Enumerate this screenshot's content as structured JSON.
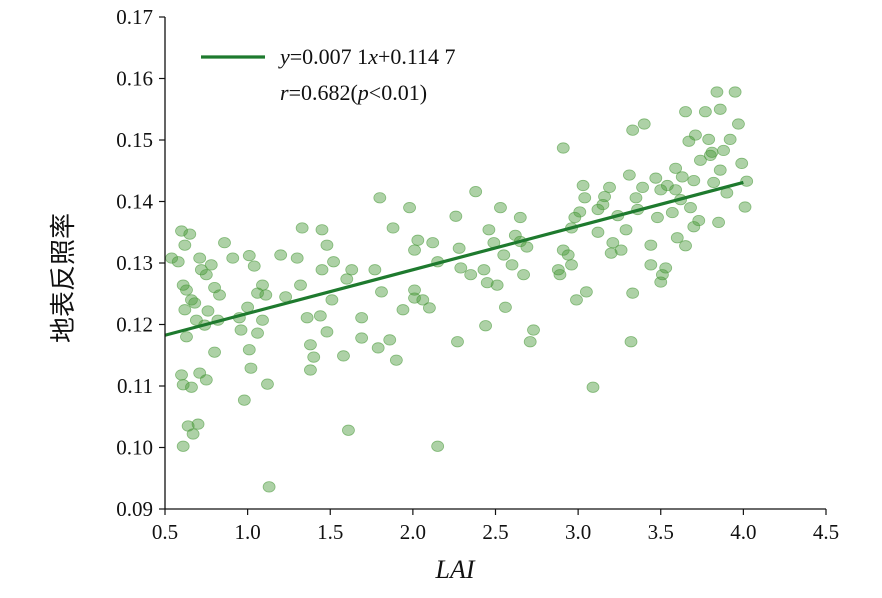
{
  "chart_data": {
    "type": "scatter",
    "xlabel": "LAI",
    "ylabel": "地表反照率",
    "xlim": [
      0.5,
      4.5
    ],
    "ylim": [
      0.09,
      0.17
    ],
    "xticks": [
      "0.5",
      "1.0",
      "1.5",
      "2.0",
      "2.5",
      "3.0",
      "3.5",
      "4.0",
      "4.5"
    ],
    "yticks": [
      "0.09",
      "0.10",
      "0.11",
      "0.12",
      "0.13",
      "0.14",
      "0.15",
      "0.16",
      "0.17"
    ],
    "grid": false,
    "point_color": "#4a9a3a",
    "line_color": "#1e7a2e",
    "regression": {
      "slope": 0.0071,
      "intercept": 0.1147,
      "x_range": [
        0.5,
        4.0
      ]
    },
    "legend": {
      "placement": "top-left",
      "equation_parts": [
        "y",
        "=0.007 1",
        "x",
        "+0.114 7"
      ],
      "stats_parts": [
        "r",
        "=0.682(",
        "p",
        "<0.01)"
      ]
    },
    "points": [
      [
        0.54,
        0.1308
      ],
      [
        0.58,
        0.1302
      ],
      [
        0.6,
        0.1352
      ],
      [
        0.65,
        0.1347
      ],
      [
        0.62,
        0.1329
      ],
      [
        0.61,
        0.1264
      ],
      [
        0.63,
        0.1256
      ],
      [
        0.66,
        0.124
      ],
      [
        0.62,
        0.1224
      ],
      [
        0.68,
        0.1235
      ],
      [
        0.71,
        0.1308
      ],
      [
        0.72,
        0.1289
      ],
      [
        0.75,
        0.1281
      ],
      [
        0.78,
        0.1297
      ],
      [
        0.8,
        0.126
      ],
      [
        0.83,
        0.1248
      ],
      [
        0.86,
        0.1333
      ],
      [
        0.63,
        0.118
      ],
      [
        0.69,
        0.1207
      ],
      [
        0.74,
        0.1199
      ],
      [
        0.76,
        0.1222
      ],
      [
        0.8,
        0.1155
      ],
      [
        0.6,
        0.1118
      ],
      [
        0.61,
        0.1102
      ],
      [
        0.66,
        0.1098
      ],
      [
        0.71,
        0.1121
      ],
      [
        0.75,
        0.111
      ],
      [
        0.64,
        0.1035
      ],
      [
        0.67,
        0.1022
      ],
      [
        0.7,
        0.1038
      ],
      [
        0.61,
        0.1002
      ],
      [
        0.82,
        0.1207
      ],
      [
        0.91,
        0.1308
      ],
      [
        0.98,
        0.1077
      ],
      [
        0.95,
        0.1211
      ],
      [
        0.96,
        0.1191
      ],
      [
        1.0,
        0.1228
      ],
      [
        1.01,
        0.1312
      ],
      [
        1.04,
        0.1295
      ],
      [
        1.06,
        0.1251
      ],
      [
        1.09,
        0.1264
      ],
      [
        1.11,
        0.1248
      ],
      [
        1.09,
        0.1207
      ],
      [
        1.06,
        0.1186
      ],
      [
        1.01,
        0.1159
      ],
      [
        1.02,
        0.1129
      ],
      [
        1.12,
        0.1103
      ],
      [
        1.13,
        0.0936
      ],
      [
        1.2,
        0.1313
      ],
      [
        1.23,
        0.1245
      ],
      [
        1.33,
        0.1357
      ],
      [
        1.3,
        0.1308
      ],
      [
        1.32,
        0.1264
      ],
      [
        1.36,
        0.1211
      ],
      [
        1.38,
        0.1167
      ],
      [
        1.4,
        0.1147
      ],
      [
        1.38,
        0.1126
      ],
      [
        1.45,
        0.1354
      ],
      [
        1.48,
        0.1329
      ],
      [
        1.45,
        0.1289
      ],
      [
        1.44,
        0.1214
      ],
      [
        1.48,
        0.1188
      ],
      [
        1.51,
        0.124
      ],
      [
        1.52,
        0.1302
      ],
      [
        1.58,
        0.1149
      ],
      [
        1.6,
        0.1274
      ],
      [
        1.63,
        0.1289
      ],
      [
        1.61,
        0.1028
      ],
      [
        1.69,
        0.1211
      ],
      [
        1.69,
        0.1178
      ],
      [
        1.77,
        0.1289
      ],
      [
        1.8,
        0.1406
      ],
      [
        1.81,
        0.1253
      ],
      [
        1.79,
        0.1162
      ],
      [
        1.86,
        0.1175
      ],
      [
        1.88,
        0.1357
      ],
      [
        1.9,
        0.1142
      ],
      [
        1.94,
        0.1224
      ],
      [
        1.98,
        0.139
      ],
      [
        2.01,
        0.1321
      ],
      [
        2.03,
        0.1337
      ],
      [
        2.01,
        0.1256
      ],
      [
        2.01,
        0.1243
      ],
      [
        2.06,
        0.124
      ],
      [
        2.1,
        0.1227
      ],
      [
        2.12,
        0.1333
      ],
      [
        2.15,
        0.1302
      ],
      [
        2.15,
        0.1002
      ],
      [
        2.26,
        0.1376
      ],
      [
        2.28,
        0.1324
      ],
      [
        2.29,
        0.1292
      ],
      [
        2.27,
        0.1172
      ],
      [
        2.35,
        0.1281
      ],
      [
        2.38,
        0.1416
      ],
      [
        2.43,
        0.1289
      ],
      [
        2.45,
        0.1268
      ],
      [
        2.44,
        0.1198
      ],
      [
        2.46,
        0.1354
      ],
      [
        2.49,
        0.1333
      ],
      [
        2.51,
        0.1264
      ],
      [
        2.53,
        0.139
      ],
      [
        2.55,
        0.1313
      ],
      [
        2.56,
        0.1228
      ],
      [
        2.6,
        0.1297
      ],
      [
        2.62,
        0.1345
      ],
      [
        2.65,
        0.1374
      ],
      [
        2.65,
        0.1335
      ],
      [
        2.67,
        0.1281
      ],
      [
        2.69,
        0.1326
      ],
      [
        2.73,
        0.1191
      ],
      [
        2.71,
        0.1172
      ],
      [
        2.88,
        0.1289
      ],
      [
        2.89,
        0.1281
      ],
      [
        2.91,
        0.1487
      ],
      [
        2.91,
        0.1321
      ],
      [
        2.94,
        0.1313
      ],
      [
        2.96,
        0.1297
      ],
      [
        2.96,
        0.1357
      ],
      [
        2.98,
        0.1374
      ],
      [
        3.01,
        0.1383
      ],
      [
        3.03,
        0.1426
      ],
      [
        3.04,
        0.1406
      ],
      [
        2.99,
        0.124
      ],
      [
        3.05,
        0.1253
      ],
      [
        3.09,
        0.1098
      ],
      [
        3.12,
        0.1387
      ],
      [
        3.12,
        0.135
      ],
      [
        3.15,
        0.1395
      ],
      [
        3.16,
        0.1408
      ],
      [
        3.2,
        0.1316
      ],
      [
        3.21,
        0.1333
      ],
      [
        3.19,
        0.1423
      ],
      [
        3.24,
        0.1377
      ],
      [
        3.26,
        0.1321
      ],
      [
        3.29,
        0.1354
      ],
      [
        3.31,
        0.1443
      ],
      [
        3.33,
        0.1516
      ],
      [
        3.33,
        0.1251
      ],
      [
        3.32,
        0.1172
      ],
      [
        3.35,
        0.1406
      ],
      [
        3.36,
        0.1387
      ],
      [
        3.39,
        0.1423
      ],
      [
        3.4,
        0.1526
      ],
      [
        3.44,
        0.1329
      ],
      [
        3.44,
        0.1297
      ],
      [
        3.47,
        0.1438
      ],
      [
        3.48,
        0.1374
      ],
      [
        3.5,
        0.1419
      ],
      [
        3.5,
        0.1269
      ],
      [
        3.53,
        0.1292
      ],
      [
        3.51,
        0.1281
      ],
      [
        3.54,
        0.1426
      ],
      [
        3.57,
        0.1382
      ],
      [
        3.59,
        0.1419
      ],
      [
        3.62,
        0.1403
      ],
      [
        3.6,
        0.1341
      ],
      [
        3.65,
        0.1546
      ],
      [
        3.67,
        0.1498
      ],
      [
        3.65,
        0.1328
      ],
      [
        3.7,
        0.1434
      ],
      [
        3.68,
        0.139
      ],
      [
        3.71,
        0.1508
      ],
      [
        3.7,
        0.1359
      ],
      [
        3.73,
        0.1369
      ],
      [
        3.74,
        0.1467
      ],
      [
        3.77,
        0.1546
      ],
      [
        3.79,
        0.1501
      ],
      [
        3.8,
        0.1475
      ],
      [
        3.82,
        0.1431
      ],
      [
        3.84,
        0.1578
      ],
      [
        3.86,
        0.155
      ],
      [
        3.88,
        0.1483
      ],
      [
        3.9,
        0.1414
      ],
      [
        3.85,
        0.1366
      ],
      [
        3.92,
        0.1501
      ],
      [
        3.95,
        0.1578
      ],
      [
        3.97,
        0.1526
      ],
      [
        3.99,
        0.1462
      ],
      [
        4.01,
        0.1391
      ],
      [
        3.86,
        0.1451
      ],
      [
        3.59,
        0.1454
      ],
      [
        4.02,
        0.1433
      ],
      [
        3.81,
        0.148
      ],
      [
        3.63,
        0.144
      ]
    ]
  }
}
